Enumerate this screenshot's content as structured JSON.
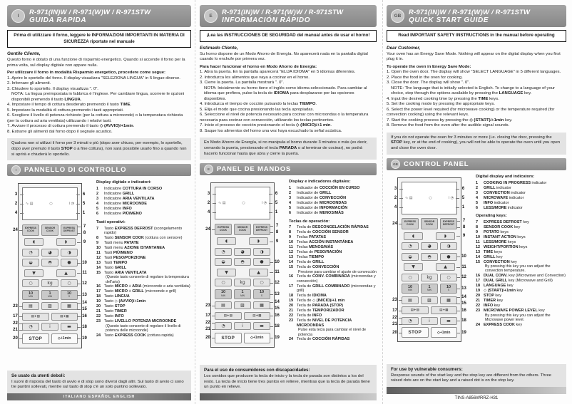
{
  "colors": {
    "header_bar": "#8f8f8f",
    "note_box": "#e3e3e3",
    "banner_border": "#141414"
  },
  "columns": [
    {
      "lang_code": "I",
      "header": {
        "models": "R-971(IN)W / R-971(W)W / R-971STW",
        "title": "GUIDA RAPIDA"
      },
      "banner": "Prima di utilizzare il forno, leggere le INFORMAZIONI IMPORTANTI IN MATERIA DI SICUREZZA riportate nel manuale",
      "greeting": "Gentile Cliente,",
      "intro": "Questo forno è dotato di una funzione di risparmio energetico. Quando si accende il forno per la prima volta, sul display digitale non appare nulla.",
      "lead": "Per utilizzare il forno in modalità Risparmio energetico, procedere come segue:",
      "steps": [
        {
          "t": "1. Aprire lo sportello del forno. Il display visualizza \"SELEZIONA LINGUA\" in 5 lingue diverse."
        },
        {
          "t": "2. Infornare gli alimenti."
        },
        {
          "t": "3. Chiudere lo sportello. Il display visualizza \". 0\"."
        },
        {
          "t": "NOTA: La lingua preimpostata in fabbrica è l'inglese. Per cambiare lingua, scorrere le opzioni disponibili premendo il tasto **LINGUA**.",
          "note": true
        },
        {
          "t": "4. Impostare il tempo di cottura desiderato premendo il tasto **TIME**."
        },
        {
          "t": "5. Impostare la modalità di cottura premendo i tasti appropriati."
        },
        {
          "t": "6. Scegliere il livello di potenza richiesto (per la cottura a microonde) o la temperatura richiesta (per la cottura ad aria ventilata) utilizzando i relativi tasti."
        },
        {
          "t": "7. Avviare il processo di cottura premendo il tasto **◇ (AVVIO)/+1min**."
        },
        {
          "t": "8. Estrarre gli alimenti dal forno dopo il segnale acustico."
        }
      ],
      "standby_note": "Qualora non si utilizzi il forno per 3 minuti o più (dopo aver chiuso, per esempio, lo sportello, dopo aver premuto il tasto **STOP** o a fine cottura), non sarà possibile usarlo fino a quando non si aprirà e chiuderà lo sportello.",
      "section_title": "PANNELLO DI CONTROLLO",
      "indicators_heading": "Display digitale e indicatori:",
      "indicators": [
        {
          "n": "1",
          "pre": "Indicatore ",
          "b": "COTTURA IN CORSO"
        },
        {
          "n": "2",
          "pre": "Indicatore ",
          "b": "GRILL"
        },
        {
          "n": "3",
          "pre": "Indicatore ",
          "b": "ARIA VENTILATA"
        },
        {
          "n": "4",
          "pre": "Indicatore ",
          "b": "MICROONDE"
        },
        {
          "n": "5",
          "pre": "Indicatore ",
          "b": "INFO"
        },
        {
          "n": "6",
          "pre": "Indicatore ",
          "b": "PIÙ/MENO"
        }
      ],
      "keys_heading": "Tasti operativi:",
      "keys": [
        {
          "n": "7",
          "pre": "Tasto ",
          "b": "EXPRESS DEFROST",
          "post": " (scongelamento rapido)"
        },
        {
          "n": "8",
          "pre": "Tasto ",
          "b": "SENSOR COOK",
          "post": " (cottura con sensore)"
        },
        {
          "n": "9",
          "pre": "Tasti menu ",
          "b": "PATATE"
        },
        {
          "n": "10",
          "pre": "Tasti menu ",
          "b": "AZIONE ISTANTANEA"
        },
        {
          "n": "11",
          "pre": "Tasti ",
          "b": "PIÙ/MENO"
        },
        {
          "n": "12",
          "pre": "Tasti ",
          "b": "PESO/PORZIONE"
        },
        {
          "n": "13",
          "pre": "Tasti ",
          "b": "TEMPO"
        },
        {
          "n": "14",
          "pre": "Tasto ",
          "b": "GRILL"
        },
        {
          "n": "15",
          "pre": "Tasto ",
          "b": "ARIA VENTILATA",
          "sub": "(Questo tasto consente di regolare la temperatura dell'aria)"
        },
        {
          "n": "16",
          "pre": "Tasto ",
          "b": "MICRO + ARIA",
          "post": " (microonde e aria ventilata)"
        },
        {
          "n": "17",
          "pre": "Tasto ",
          "b": "MICRO + GRILL",
          "post": " (microonde e grill)"
        },
        {
          "n": "18",
          "pre": "Tasto ",
          "b": "LINGUA"
        },
        {
          "n": "19",
          "pre": "Tasto ◇ ",
          "b": "(AVVIO)/+1min"
        },
        {
          "n": "20",
          "pre": "Tasto ",
          "b": "STOP"
        },
        {
          "n": "21",
          "pre": "Tasto ",
          "b": "TIMER"
        },
        {
          "n": "22",
          "pre": "Tasto ",
          "b": "INFO"
        },
        {
          "n": "23",
          "pre": "Tasto ",
          "b": "LIVELLO POTENZA MICROONDE",
          "sub": "(Questo tasto consente di regolare il livello di potenza delle microonde)"
        },
        {
          "n": "24",
          "pre": "Tasto ",
          "b": "EXPRESS COOK",
          "post": " (cottura rapida)"
        }
      ],
      "vulnerable_heading": "Se usato da utenti deboli:",
      "vulnerable_text": "I suoni di risposta del tasto di avvio e di stop sono diversi dagli altri. Sul tasto di avvio ci sono tre puntini sollevati, mentre sul tasto di stop c'è un solo puntino sollevato.",
      "footer_bar_text": "ITALIANO ESPAÑOL ENGLISH"
    },
    {
      "lang_code": "E",
      "header": {
        "models": "R-971(IN)W / R-971(W)W / R-971STW",
        "title": "INFORMACIÓN RÁPIDO"
      },
      "banner": "¡Lea las INSTRUCCIONES DE SEGURIDAD del manual antes de usar el horno!",
      "greeting": "Estimado Cliente,",
      "intro": "Su horno dispone de un Modo Ahorro de Energía. No aparecerá nada en la pantalla digital cuando lo enchufe por primera vez.",
      "lead": "Para hacer funcionar el horno en Modo Ahorro de Energía:",
      "steps": [
        {
          "t": "1. Abra la puerta. En la pantalla aparecerá \"ELIJA IDIOMA\" en 5 idiomas diferentes."
        },
        {
          "t": "2. Introduzca los alimentos que vaya a cocinar en el horno."
        },
        {
          "t": "3. Cierre la puerta. La pantalla mostrará \". 0\"."
        },
        {
          "t": "NOTA: Inicialmente su horno tiene el inglés como idioma seleccionado. Para cambiar al idioma que prefiera, pulse la tecla de **IDIOMA** para desplazarse por las opciones disponibles.",
          "note": true
        },
        {
          "t": "4. Introduzca el tiempo de cocción pulsando la teclas **TIEMPO**."
        },
        {
          "t": "5. Elija el modo que cocina presionando las tecla apropiadas."
        },
        {
          "t": "6. Seleccione el nivel de potencia necesario para cocinar con microondas o la temperatura necesaria para cocinar con convección, utilizando los teclas pertinentes."
        },
        {
          "t": "7. Inicie el proceso de cocción presionando el tecla **◇ (INICIO)/+1 min**."
        },
        {
          "t": "8. Saque los alimentos del horno una vez haya escuchado la señal acústica."
        }
      ],
      "standby_note": "En Modo Ahorro de Energía, si no manipula el horno durante 3 minutos o más (es decir, cerrando la puerta, presionando el tecla **PARADA** o al terminar de cocinar), no podrá hacerlo funcionar hasta que abra y cierre la puerta.",
      "section_title": "PANEL DE MANDOS",
      "indicators_heading": "Display e indicadores digitales:",
      "indicators": [
        {
          "n": "1",
          "pre": "Indicador de ",
          "b": "COCCIÓN EN CURSO"
        },
        {
          "n": "2",
          "pre": "Indicador de ",
          "b": "GRILL"
        },
        {
          "n": "3",
          "pre": "Indicador de ",
          "b": "CONVECCIÓN"
        },
        {
          "n": "4",
          "pre": "Indicador de ",
          "b": "MICROONDAS"
        },
        {
          "n": "5",
          "pre": "Indicador de ",
          "b": "INFORMACIÓN"
        },
        {
          "n": "6",
          "pre": "Indicador de ",
          "b": "MENOS/MÁS"
        }
      ],
      "keys_heading": "Teclas de operación:",
      "keys": [
        {
          "n": "7",
          "pre": "Tecla de ",
          "b": "DESCONGELACIÓN RÁPIDAS"
        },
        {
          "n": "8",
          "pre": "Tecla de ",
          "b": "COCCIÓN SENSOR"
        },
        {
          "n": "9",
          "pre": "Teclas ",
          "b": "PATATAS"
        },
        {
          "n": "10",
          "pre": "Teclas ",
          "b": "ACCIÓN INSTANTÁNEA"
        },
        {
          "n": "11",
          "pre": "Teclas ",
          "b": "MENOS/MÁS"
        },
        {
          "n": "12",
          "pre": "Teclas de ",
          "b": "PESO/RACIÓN"
        },
        {
          "n": "13",
          "pre": "Teclas ",
          "b": "TIEMPO"
        },
        {
          "n": "14",
          "pre": "Tecla de ",
          "b": "GRILL"
        },
        {
          "n": "15",
          "pre": "Tecla de ",
          "b": "CONVECCIÓN",
          "sub": "Presione para cambiar el ajuste de convección"
        },
        {
          "n": "16",
          "pre": "Tecla de ",
          "b": "CONV. COMBINADA",
          "post": " (microondas y convección)"
        },
        {
          "n": "17",
          "pre": "Tecla de ",
          "b": "GRILL COMBINADO",
          "post": " (microondas y grill)"
        },
        {
          "n": "18",
          "pre": "Tecla de ",
          "b": "IDIOMA"
        },
        {
          "n": "19",
          "pre": "Tecla de ◇ ",
          "b": "(INICIO)/+1 min"
        },
        {
          "n": "20",
          "pre": "Tecla de ",
          "b": "PARADA (STOP)"
        },
        {
          "n": "21",
          "pre": "Tecla de ",
          "b": "TEMPORIZADOR"
        },
        {
          "n": "22",
          "pre": "Tecla de ",
          "b": "INFO"
        },
        {
          "n": "23",
          "pre": "Tecla de ",
          "b": "NIVEL DE POTENCIA MICROONDAS",
          "sub": "Pulse esta tecla para cambiar el nivel de potencia"
        },
        {
          "n": "24",
          "pre": "Tecla de ",
          "b": "COCCIÓN RÁPIDAS"
        }
      ],
      "vulnerable_heading": "Para el uso de consumidores con discapacidades:",
      "vulnerable_text": "Los sonidos que producen la tecla de inicio y la tecla de parada son distintos a los del resto. La tecla de inicio tiene tres puntos en relieve, mientras que la tecla de parada tiene un punto en relieve.",
      "footer_bar_text": ""
    },
    {
      "lang_code": "GB",
      "header": {
        "models": "R-971(IN)W / R-971(W)W / R-971STW",
        "title": "QUICK START GUIDE"
      },
      "banner": "Read IMPORTANT SAFETY INSTRUCTIONS in the manual before operating",
      "greeting": "Dear Customer,",
      "intro": "Your oven has an Energy Save Mode. Nothing will appear on the digital display when you first plug it in.",
      "lead": "To operate the oven in Energy Save Mode:",
      "steps": [
        {
          "t": "1. Open the oven door. The display will show \"SELECT LANGUAGE\" in 5 different languages."
        },
        {
          "t": "2. Place the food in the oven for cooking."
        },
        {
          "t": "3. Close the door. The display will show \". 0\"."
        },
        {
          "t": "NOTE: The language that is initially selected is English. To change to a language of your choice, step through the options available by pressing the **LANGUAGE** key.",
          "note": true
        },
        {
          "t": "4. Input the desired cooking time by pressing the **TIME** keys."
        },
        {
          "t": "5. Set the cooking mode by pressing the appropriate keys."
        },
        {
          "t": "6. Select the power level required (for microwave cooking) or the temperature required (for convection cooking) using the relevant keys."
        },
        {
          "t": "7. Start the cooking process by pressing the **◇ (START)/+1min** key."
        },
        {
          "t": "8. Remove the food from the oven after the audible signal sounds."
        }
      ],
      "standby_note": "If you do not operate the oven for 3 minutes or more (i.e. closing the door, pressing the **STOP** key, or at the end of cooking), you will not be able to operate the oven until you open and close the oven door.",
      "section_title": "CONTROL PANEL",
      "indicators_heading": "Digital display and indicators:",
      "indicators": [
        {
          "n": "1",
          "b": "COOKING IN PROGRESS",
          "post": " indicator"
        },
        {
          "n": "2",
          "b": "GRILL",
          "post": " indicator"
        },
        {
          "n": "3",
          "b": "CONVECTION",
          "post": " indicator"
        },
        {
          "n": "4",
          "b": "MICROWAVE",
          "post": " indicator"
        },
        {
          "n": "5",
          "b": "INFO",
          "post": " indicator"
        },
        {
          "n": "6",
          "b": "LESS/MORE",
          "post": " indicator"
        }
      ],
      "keys_heading": "Operating keys:",
      "keys": [
        {
          "n": "7",
          "b": "EXPRESS DEFROST",
          "post": " key"
        },
        {
          "n": "8",
          "b": "SENSOR COOK",
          "post": " key"
        },
        {
          "n": "9",
          "b": "POTATO",
          "post": " keys"
        },
        {
          "n": "10",
          "b": "INSTANT ACTION",
          "post": " keys"
        },
        {
          "n": "11",
          "b": "LESS/MORE",
          "post": " keys"
        },
        {
          "n": "12",
          "b": "WEIGHT/PORTION",
          "post": " keys"
        },
        {
          "n": "13",
          "b": "TIME",
          "post": " keys"
        },
        {
          "n": "14",
          "b": "GRILL",
          "post": " key"
        },
        {
          "n": "15",
          "b": "CONVECTION",
          "post": " key",
          "sub": "By pressing this key you can adjust the convection temperature."
        },
        {
          "n": "16",
          "b": "DUAL CONV.",
          "post": " key (Microwave and Convection)"
        },
        {
          "n": "17",
          "b": "DUAL GRILL",
          "post": " key (Microwave and Grill)"
        },
        {
          "n": "18",
          "b": "LANGUAGE",
          "post": " key"
        },
        {
          "n": "19",
          "pre": "◇ ",
          "b": "(START)/+1min",
          "post": " key"
        },
        {
          "n": "20",
          "b": "STOP",
          "post": " key"
        },
        {
          "n": "21",
          "b": "TIMER",
          "post": " key"
        },
        {
          "n": "22",
          "b": "INFO",
          "post": " key"
        },
        {
          "n": "23",
          "b": "MICROWAVE POWER LEVEL",
          "post": " key",
          "sub": "By pressing this key you can adjust the Microwave power level."
        },
        {
          "n": "24",
          "b": "EXPRESS COOK",
          "post": " key"
        }
      ],
      "vulnerable_heading": "For use by vulnerable consumers:",
      "vulnerable_text": "Response sounds of the start key and the stop key are different from the others. Three raised dots are on the start key and a raised dot is on the stop key.",
      "footer_bar_text": "",
      "doc_code": "TINS-A856WRRZ-H31"
    }
  ],
  "diagram": {
    "display": {
      "glyphs": [
        "∿ ▤",
        "○",
        "i ◔"
      ],
      "glyph_names": [
        "microwave-grill-indicator-icon",
        "cooking-in-progress-indicator-icon",
        "info-lessmore-indicator-icon"
      ],
      "left": [
        "3",
        "2",
        "4"
      ],
      "right": [
        "6",
        "5",
        "1"
      ]
    },
    "rows": [
      {
        "name": "express-keys",
        "type": "labels",
        "keys": [
          "EXPRESS COOK",
          "SENSOR COOK",
          "EXPRESS DEFROST"
        ],
        "names": [
          "express-cook-key",
          "sensor-cook-key",
          "express-defrost-key"
        ],
        "left": [
          "24"
        ],
        "right": [
          "7",
          "8"
        ]
      },
      {
        "name": "potato-keys",
        "type": "icons2",
        "keys": [
          "◖",
          "◗"
        ],
        "names": [
          "potato-key-icon",
          "potato-key-icon"
        ],
        "left": [],
        "right": [
          "9"
        ]
      },
      {
        "name": "instant-action-keys-1",
        "type": "icons3",
        "keys": [
          "◔",
          "◕",
          "◑"
        ],
        "names": [
          "instant-action-key-icon",
          "instant-action-key-icon",
          "instant-action-key-icon"
        ],
        "left": [],
        "right": []
      },
      {
        "name": "instant-action-keys-2",
        "type": "icons3",
        "keys": [
          "◒",
          "◓",
          "●"
        ],
        "names": [
          "instant-action-key-icon",
          "instant-action-key-icon",
          "instant-action-key-icon"
        ],
        "left": [],
        "right": [
          "10"
        ]
      },
      {
        "name": "less-more-keys",
        "type": "icons2",
        "keys": [
          "▼",
          "▲"
        ],
        "names": [
          "less-key-icon",
          "more-key-icon"
        ],
        "left": [],
        "right": [
          "11"
        ]
      },
      {
        "name": "weight-portion-keys",
        "type": "icons3",
        "keys": [
          "○",
          "kg",
          "○"
        ],
        "names": [
          "weight-portion-key-icon",
          "weight-portion-kg-key",
          "weight-portion-key-icon"
        ],
        "left": [],
        "right": [
          "12"
        ]
      },
      {
        "name": "time-keys",
        "type": "time",
        "keys": [
          [
            "10",
            "MIN"
          ],
          [
            "1",
            "MIN"
          ],
          [
            "10",
            "S"
          ]
        ],
        "names": [
          "time-10min-key",
          "time-1min-key",
          "time-10s-key"
        ],
        "left": [],
        "right": [
          "13"
        ]
      },
      {
        "name": "mode-keys",
        "type": "icons3",
        "keys": [
          "▤",
          "▨",
          "▦"
        ],
        "names": [
          "microwave-power-level-key-icon",
          "grill-key-icon",
          "convection-key-icon"
        ],
        "left": [
          "23"
        ],
        "right": [
          "14",
          "15"
        ]
      },
      {
        "name": "dual-keys",
        "type": "wide2",
        "keys": [
          "▤+▨",
          "▤+▦"
        ],
        "names": [
          "dual-grill-key",
          "dual-conv-key"
        ],
        "left": [
          "17"
        ],
        "right": [
          "16"
        ]
      },
      {
        "name": "utility-keys",
        "type": "icons3",
        "keys": [
          "◔",
          "i",
          "▬"
        ],
        "names": [
          "timer-key-icon",
          "info-key-icon",
          "language-key-icon"
        ],
        "left": [
          "22",
          "21"
        ],
        "right": [
          "18"
        ]
      },
      {
        "name": "stop-start-keys",
        "type": "stopstart",
        "keys": [
          "STOP",
          "◇+1min"
        ],
        "names": [
          "stop-key",
          "start-key"
        ],
        "left": [
          "20"
        ],
        "right": [
          "19"
        ]
      }
    ]
  }
}
